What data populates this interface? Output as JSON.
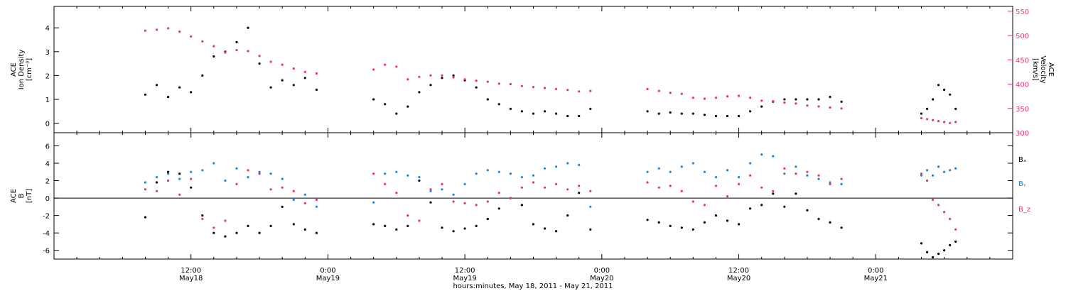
{
  "chart_data": [
    {
      "type": "scatter",
      "title": "",
      "ylabel_lines": [
        "ACE",
        "Ion Density",
        "[cm⁻³]"
      ],
      "ylabel_right_lines": [
        "ACE",
        "Velocity",
        "[km/s]"
      ],
      "ylim": [
        -0.4,
        4.9
      ],
      "yticks": [
        0,
        1,
        2,
        3,
        4
      ],
      "ylim_right": [
        300,
        560
      ],
      "yticks_right": [
        300,
        350,
        400,
        450,
        500,
        550
      ],
      "series": [
        {
          "label": "density",
          "color": "#000000",
          "segments": [
            {
              "x": [
                8,
                9,
                10,
                11,
                12,
                13,
                14,
                15,
                16,
                17,
                18,
                19,
                20,
                21,
                22,
                23
              ],
              "y": [
                1.2,
                1.6,
                1.1,
                1.5,
                1.3,
                2.0,
                2.8,
                3.0,
                3.4,
                4.0,
                2.5,
                1.5,
                1.8,
                1.6,
                1.9,
                1.4
              ]
            },
            {
              "x": [
                28,
                29,
                30,
                31,
                32,
                33,
                34,
                35,
                36,
                37,
                38,
                39,
                40,
                41,
                42,
                43,
                44,
                45,
                46,
                47
              ],
              "y": [
                1.0,
                0.8,
                0.4,
                0.7,
                1.3,
                1.6,
                1.9,
                2.0,
                1.8,
                1.5,
                1.0,
                0.8,
                0.6,
                0.5,
                0.4,
                0.5,
                0.4,
                0.3,
                0.3,
                0.6
              ]
            },
            {
              "x": [
                52,
                53,
                54,
                55,
                56,
                57,
                58,
                59,
                60,
                61,
                62,
                63,
                64,
                65,
                66,
                67,
                68,
                69
              ],
              "y": [
                0.5,
                0.4,
                0.45,
                0.4,
                0.4,
                0.35,
                0.3,
                0.3,
                0.3,
                0.5,
                0.7,
                0.9,
                1.0,
                1.0,
                1.0,
                1.0,
                1.1,
                0.9
              ]
            },
            {
              "x": [
                76,
                76.5,
                77,
                77.5,
                78,
                78.5,
                79
              ],
              "y": [
                0.4,
                0.6,
                1.0,
                1.6,
                1.4,
                1.2,
                0.6
              ]
            }
          ]
        },
        {
          "label": "velocity",
          "color": "#e8356a",
          "axis": "right",
          "segments": [
            {
              "x": [
                8,
                9,
                10,
                11,
                12,
                13,
                14,
                15,
                16,
                17,
                18,
                19,
                20,
                21,
                22,
                23
              ],
              "y": [
                510,
                512,
                515,
                508,
                498,
                488,
                478,
                465,
                470,
                468,
                458,
                446,
                440,
                432,
                425,
                422
              ]
            },
            {
              "x": [
                28,
                29,
                30,
                31,
                32,
                33,
                34,
                35,
                36,
                37,
                38,
                39,
                40,
                41,
                42,
                43,
                44,
                45,
                46,
                47
              ],
              "y": [
                430,
                440,
                436,
                410,
                415,
                418,
                418,
                414,
                410,
                407,
                405,
                401,
                400,
                396,
                394,
                392,
                390,
                388,
                385,
                386
              ]
            },
            {
              "x": [
                52,
                53,
                54,
                55,
                56,
                57,
                58,
                59,
                60,
                61,
                62,
                63,
                64,
                65,
                66,
                67,
                68,
                69
              ],
              "y": [
                390,
                386,
                382,
                380,
                372,
                370,
                372,
                375,
                376,
                372,
                366,
                365,
                362,
                360,
                356,
                354,
                352,
                350
              ]
            },
            {
              "x": [
                76,
                76.5,
                77,
                77.5,
                78,
                78.5,
                79
              ],
              "y": [
                330,
                328,
                326,
                324,
                322,
                320,
                322
              ]
            }
          ]
        }
      ]
    },
    {
      "type": "scatter",
      "title": "",
      "ylabel_lines": [
        "ACE",
        "B",
        "[nT]"
      ],
      "ylim": [
        -7,
        7.5
      ],
      "yticks": [
        -6,
        -4,
        -2,
        0,
        2,
        4,
        6
      ],
      "zero_line": true,
      "legend": [
        "Bₓ",
        "Bᵧ",
        "B_z"
      ],
      "series": [
        {
          "name": "Bₓ",
          "color": "#000000",
          "segments": [
            {
              "x": [
                8,
                9,
                10,
                11,
                12,
                13,
                14,
                15,
                16,
                17,
                18,
                19,
                20,
                21,
                22,
                23
              ],
              "y": [
                -2.2,
                1.8,
                3.0,
                2.8,
                1.2,
                -2.0,
                -4.0,
                -4.4,
                -4.0,
                -3.2,
                -4.0,
                -3.2,
                -1.0,
                -3.0,
                -3.6,
                -4.0
              ]
            },
            {
              "x": [
                28,
                29,
                30,
                31,
                32,
                33,
                34,
                35,
                36,
                37,
                38,
                39,
                40,
                41,
                42,
                43,
                44,
                45,
                46,
                47
              ],
              "y": [
                -3.0,
                -3.2,
                -3.6,
                -3.2,
                2.0,
                -0.5,
                -3.4,
                -3.8,
                -3.5,
                -3.2,
                -2.4,
                -1.2,
                0.0,
                -0.8,
                -3.0,
                -3.5,
                -3.8,
                -2.0,
                0.6,
                -3.6
              ]
            },
            {
              "x": [
                52,
                53,
                54,
                55,
                56,
                57,
                58,
                59,
                60,
                61,
                62,
                63,
                64,
                65,
                66,
                67,
                68,
                69
              ],
              "y": [
                -2.5,
                -2.8,
                -3.2,
                -3.4,
                -3.6,
                -2.8,
                -2.0,
                -2.6,
                -3.0,
                -1.2,
                -0.8,
                0.5,
                -1.0,
                0.5,
                -1.4,
                -2.4,
                -2.8,
                -3.4
              ]
            },
            {
              "x": [
                76,
                76.5,
                77,
                77.5,
                78,
                78.5,
                79
              ],
              "y": [
                -5.2,
                -6.2,
                -6.8,
                -6.4,
                -6.0,
                -5.4,
                -5.0
              ]
            }
          ]
        },
        {
          "name": "Bᵧ",
          "color": "#1f86dd",
          "segments": [
            {
              "x": [
                8,
                9,
                10,
                11,
                12,
                13,
                14,
                15,
                16,
                17,
                18,
                19,
                20,
                21,
                22,
                23
              ],
              "y": [
                1.8,
                2.4,
                2.8,
                2.2,
                3.0,
                3.2,
                4.0,
                2.0,
                3.4,
                2.4,
                3.0,
                2.8,
                2.2,
                -0.2,
                0.4,
                -1.0
              ]
            },
            {
              "x": [
                28,
                29,
                30,
                31,
                32,
                33,
                34,
                35,
                36,
                37,
                38,
                39,
                40,
                41,
                42,
                43,
                44,
                45,
                46,
                47
              ],
              "y": [
                -0.5,
                2.8,
                3.0,
                2.6,
                2.4,
                0.8,
                1.0,
                0.4,
                1.6,
                2.8,
                3.2,
                3.0,
                2.8,
                2.4,
                2.6,
                3.4,
                3.6,
                4.0,
                3.8,
                -1.0
              ]
            },
            {
              "x": [
                52,
                53,
                54,
                55,
                56,
                57,
                58,
                59,
                60,
                61,
                62,
                63,
                64,
                65,
                66,
                67,
                68,
                69
              ],
              "y": [
                3.0,
                3.4,
                3.0,
                3.6,
                4.0,
                3.0,
                2.4,
                3.2,
                2.4,
                4.0,
                5.0,
                4.8,
                2.8,
                3.6,
                2.6,
                2.2,
                1.8,
                1.6
              ]
            },
            {
              "x": [
                76,
                76.5,
                77,
                77.5,
                78,
                78.5,
                79
              ],
              "y": [
                2.6,
                3.2,
                2.6,
                3.6,
                3.0,
                3.2,
                3.4
              ]
            }
          ]
        },
        {
          "name": "B_z",
          "color": "#e8356a",
          "segments": [
            {
              "x": [
                8,
                9,
                10,
                11,
                12,
                13,
                14,
                15,
                16,
                17,
                18,
                19,
                20,
                21,
                22,
                23
              ],
              "y": [
                1.0,
                0.8,
                2.0,
                0.4,
                2.2,
                -2.4,
                -3.4,
                -2.6,
                1.6,
                3.2,
                2.8,
                1.0,
                1.2,
                0.8,
                -0.6,
                -0.2
              ]
            },
            {
              "x": [
                28,
                29,
                30,
                31,
                32,
                33,
                34,
                35,
                36,
                37,
                38,
                39,
                40,
                41,
                42,
                43,
                44,
                45,
                46,
                47
              ],
              "y": [
                2.8,
                1.6,
                0.6,
                -2.0,
                -2.6,
                1.0,
                1.6,
                -0.4,
                -0.6,
                -0.8,
                -0.4,
                0.6,
                0.0,
                1.2,
                1.8,
                1.2,
                1.6,
                1.0,
                1.4,
                0.8
              ]
            },
            {
              "x": [
                52,
                53,
                54,
                55,
                56,
                57,
                58,
                59,
                60,
                61,
                62,
                63,
                64,
                65,
                66,
                67,
                68,
                69
              ],
              "y": [
                1.8,
                1.2,
                1.4,
                0.8,
                -0.4,
                -0.8,
                1.4,
                0.2,
                1.6,
                2.6,
                1.2,
                0.8,
                3.4,
                2.8,
                3.0,
                2.6,
                1.6,
                2.2
              ]
            },
            {
              "x": [
                76,
                76.5,
                77,
                77.5,
                78,
                78.5,
                79
              ],
              "y": [
                2.8,
                2.0,
                -0.2,
                -0.8,
                -1.6,
                -2.4,
                -3.6
              ]
            }
          ]
        }
      ]
    }
  ],
  "x_axis": {
    "range": [
      0,
      84
    ],
    "major_ticks": [
      {
        "x": 12,
        "line1": "12:00",
        "line2": "May18"
      },
      {
        "x": 24,
        "line1": "0:00",
        "line2": "May19"
      },
      {
        "x": 36,
        "line1": "12:00",
        "line2": "May19"
      },
      {
        "x": 48,
        "line1": "0:00",
        "line2": "May20"
      },
      {
        "x": 60,
        "line1": "12:00",
        "line2": "May20"
      },
      {
        "x": 72,
        "line1": "0:00",
        "line2": "May21"
      }
    ],
    "title": "hours:minutes, May 18, 2011 - May 21, 2011"
  }
}
